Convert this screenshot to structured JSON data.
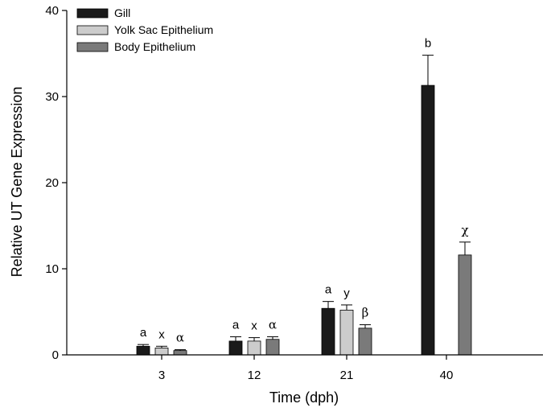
{
  "chart_data": {
    "type": "bar",
    "title": "",
    "xlabel": "Time (dph)",
    "ylabel": "Relative UT Gene Expression",
    "categories": [
      "3",
      "12",
      "21",
      "40"
    ],
    "ylim": [
      0,
      40
    ],
    "yticks": [
      "0",
      "10",
      "20",
      "30",
      "40"
    ],
    "legend_position": "top-left",
    "grid": false,
    "series": [
      {
        "name": "Gill",
        "color": "#1a1a1a",
        "values": [
          1.0,
          1.6,
          5.4,
          31.3
        ],
        "errors": [
          0.2,
          0.5,
          0.8,
          3.5
        ],
        "labels": [
          "a",
          "a",
          "a",
          "b"
        ]
      },
      {
        "name": "Yolk Sac Epithelium",
        "color": "#cccccc",
        "values": [
          0.8,
          1.6,
          5.2,
          null
        ],
        "errors": [
          0.2,
          0.4,
          0.6,
          null
        ],
        "labels": [
          "x",
          "x",
          "y",
          ""
        ]
      },
      {
        "name": "Body Epithelium",
        "color": "#7a7a7a",
        "values": [
          0.5,
          1.8,
          3.1,
          11.6
        ],
        "errors": [
          0.1,
          0.3,
          0.4,
          1.5
        ],
        "labels": [
          "α",
          "α",
          "β",
          "χ"
        ]
      }
    ]
  }
}
